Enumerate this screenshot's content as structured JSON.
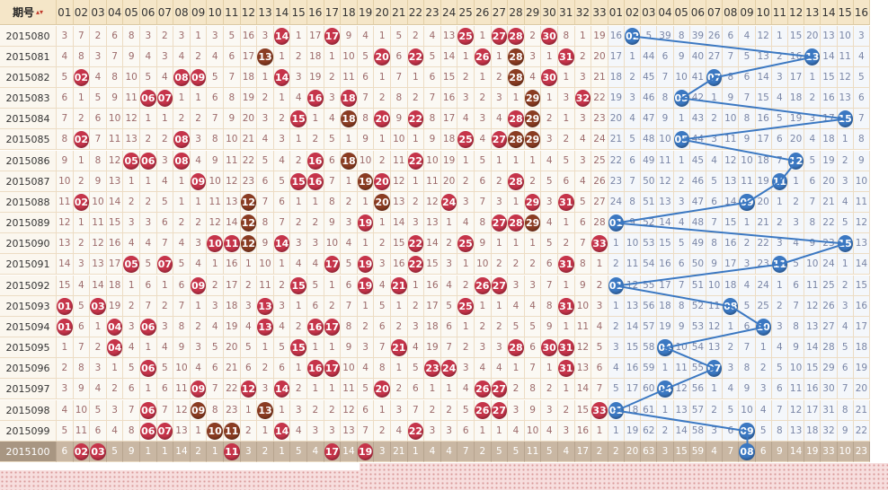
{
  "header": {
    "period_label": "期号",
    "sort_icon": "sort-up-down-icon",
    "red_cols": [
      "01",
      "02",
      "03",
      "04",
      "05",
      "06",
      "07",
      "08",
      "09",
      "10",
      "11",
      "12",
      "13",
      "14",
      "15",
      "16",
      "17",
      "18",
      "19",
      "20",
      "21",
      "22",
      "23",
      "24",
      "25",
      "26",
      "27",
      "28",
      "29",
      "30",
      "31",
      "32",
      "33"
    ],
    "blue_cols": [
      "01",
      "02",
      "03",
      "04",
      "05",
      "06",
      "07",
      "08",
      "09",
      "10",
      "11",
      "12",
      "13",
      "14",
      "15",
      "16"
    ]
  },
  "colors": {
    "red_ball": "#c6344a",
    "repeat_ball": "#8a3c22",
    "blue_ball": "#3b78c2",
    "header_bg": "#f5e6c8"
  },
  "rows": [
    {
      "period": "2015080",
      "red": [
        "3",
        "7",
        "2",
        "6",
        "8",
        "3",
        "2",
        "3",
        "1",
        "3",
        "5",
        "16",
        "3",
        "*14",
        "1",
        "17",
        "*17",
        "9",
        "4",
        "1",
        "5",
        "2",
        "4",
        "13",
        "*25",
        "1",
        "*27",
        "*28",
        "2",
        "*30",
        "8",
        "1",
        "19"
      ],
      "blue": [
        "16",
        "*02",
        "5",
        "39",
        "8",
        "39",
        "26",
        "6",
        "4",
        "12",
        "1",
        "15",
        "20",
        "13",
        "10",
        "3"
      ]
    },
    {
      "period": "2015081",
      "red": [
        "4",
        "8",
        "3",
        "7",
        "9",
        "4",
        "3",
        "4",
        "2",
        "4",
        "6",
        "17",
        "#13",
        "1",
        "2",
        "18",
        "1",
        "10",
        "5",
        "*20",
        "6",
        "*22",
        "5",
        "14",
        "1",
        "*26",
        "1",
        "#28",
        "3",
        "1",
        "*31",
        "2",
        "20"
      ],
      "blue": [
        "17",
        "1",
        "44",
        "6",
        "9",
        "40",
        "27",
        "7",
        "5",
        "13",
        "2",
        "16",
        "*13",
        "14",
        "11",
        "4"
      ]
    },
    {
      "period": "2015082",
      "red": [
        "5",
        "*02",
        "4",
        "8",
        "10",
        "5",
        "4",
        "*08",
        "*09",
        "5",
        "7",
        "18",
        "1",
        "*14",
        "3",
        "19",
        "2",
        "11",
        "6",
        "1",
        "7",
        "1",
        "6",
        "15",
        "2",
        "1",
        "2",
        "#28",
        "4",
        "*30",
        "1",
        "3",
        "21"
      ],
      "blue": [
        "18",
        "2",
        "45",
        "7",
        "10",
        "41",
        "*07",
        "8",
        "6",
        "14",
        "3",
        "17",
        "1",
        "15",
        "12",
        "5"
      ]
    },
    {
      "period": "2015083",
      "red": [
        "6",
        "1",
        "5",
        "9",
        "11",
        "*06",
        "*07",
        "1",
        "1",
        "6",
        "8",
        "19",
        "2",
        "1",
        "4",
        "*16",
        "3",
        "*18",
        "7",
        "2",
        "8",
        "2",
        "7",
        "16",
        "3",
        "2",
        "3",
        "1",
        "#29",
        "1",
        "3",
        "*32",
        "22"
      ],
      "blue": [
        "19",
        "3",
        "46",
        "8",
        "*05",
        "42",
        "1",
        "9",
        "7",
        "15",
        "4",
        "18",
        "2",
        "16",
        "13",
        "6"
      ]
    },
    {
      "period": "2015084",
      "red": [
        "7",
        "2",
        "6",
        "10",
        "12",
        "1",
        "1",
        "2",
        "2",
        "7",
        "9",
        "20",
        "3",
        "2",
        "*15",
        "1",
        "4",
        "#18",
        "8",
        "*20",
        "9",
        "*22",
        "8",
        "17",
        "4",
        "3",
        "4",
        "*28",
        "#29",
        "2",
        "1",
        "3",
        "23"
      ],
      "blue": [
        "20",
        "4",
        "47",
        "9",
        "1",
        "43",
        "2",
        "10",
        "8",
        "16",
        "5",
        "19",
        "3",
        "17",
        "*15",
        "7"
      ]
    },
    {
      "period": "2015085",
      "red": [
        "8",
        "*02",
        "7",
        "11",
        "13",
        "2",
        "2",
        "*08",
        "3",
        "8",
        "10",
        "21",
        "4",
        "3",
        "1",
        "2",
        "5",
        "1",
        "9",
        "1",
        "10",
        "1",
        "9",
        "18",
        "*25",
        "4",
        "*27",
        "#28",
        "#29",
        "3",
        "2",
        "4",
        "24"
      ],
      "blue": [
        "21",
        "5",
        "48",
        "10",
        "*05",
        "44",
        "3",
        "11",
        "9",
        "17",
        "6",
        "20",
        "4",
        "18",
        "1",
        "8"
      ]
    },
    {
      "period": "2015086",
      "red": [
        "9",
        "1",
        "8",
        "12",
        "*05",
        "*06",
        "3",
        "*08",
        "4",
        "9",
        "11",
        "22",
        "5",
        "4",
        "2",
        "*16",
        "6",
        "#18",
        "10",
        "2",
        "11",
        "*22",
        "10",
        "19",
        "1",
        "5",
        "1",
        "1",
        "1",
        "4",
        "5",
        "3",
        "25"
      ],
      "blue": [
        "22",
        "6",
        "49",
        "11",
        "1",
        "45",
        "4",
        "12",
        "10",
        "18",
        "7",
        "*12",
        "5",
        "19",
        "2",
        "9"
      ]
    },
    {
      "period": "2015087",
      "red": [
        "10",
        "2",
        "9",
        "13",
        "1",
        "1",
        "4",
        "1",
        "*09",
        "10",
        "12",
        "23",
        "6",
        "5",
        "*15",
        "*16",
        "7",
        "1",
        "#19",
        "*20",
        "12",
        "1",
        "11",
        "20",
        "2",
        "6",
        "2",
        "*28",
        "2",
        "5",
        "6",
        "4",
        "26"
      ],
      "blue": [
        "23",
        "7",
        "50",
        "12",
        "2",
        "46",
        "5",
        "13",
        "11",
        "19",
        "*11",
        "1",
        "6",
        "20",
        "3",
        "10"
      ]
    },
    {
      "period": "2015088",
      "red": [
        "11",
        "*02",
        "10",
        "14",
        "2",
        "2",
        "5",
        "1",
        "1",
        "11",
        "13",
        "#12",
        "7",
        "6",
        "1",
        "1",
        "8",
        "2",
        "1",
        "#20",
        "13",
        "2",
        "12",
        "*24",
        "3",
        "7",
        "3",
        "1",
        "*29",
        "3",
        "*31",
        "5",
        "27"
      ],
      "blue": [
        "24",
        "8",
        "51",
        "13",
        "3",
        "47",
        "6",
        "14",
        "*09",
        "20",
        "1",
        "2",
        "7",
        "21",
        "4",
        "11"
      ]
    },
    {
      "period": "2015089",
      "red": [
        "12",
        "1",
        "11",
        "15",
        "3",
        "3",
        "6",
        "2",
        "2",
        "12",
        "14",
        "#12",
        "8",
        "7",
        "2",
        "2",
        "9",
        "3",
        "*19",
        "1",
        "14",
        "3",
        "13",
        "1",
        "4",
        "8",
        "*27",
        "*28",
        "#29",
        "4",
        "1",
        "6",
        "28"
      ],
      "blue": [
        "*01",
        "9",
        "52",
        "14",
        "4",
        "48",
        "7",
        "15",
        "1",
        "21",
        "2",
        "3",
        "8",
        "22",
        "5",
        "12"
      ]
    },
    {
      "period": "2015090",
      "red": [
        "13",
        "2",
        "12",
        "16",
        "4",
        "4",
        "7",
        "4",
        "3",
        "*10",
        "*11",
        "#12",
        "9",
        "*14",
        "3",
        "3",
        "10",
        "4",
        "1",
        "2",
        "15",
        "*22",
        "14",
        "2",
        "*25",
        "9",
        "1",
        "1",
        "1",
        "5",
        "2",
        "7",
        "*33"
      ],
      "blue": [
        "1",
        "10",
        "53",
        "15",
        "5",
        "49",
        "8",
        "16",
        "2",
        "22",
        "3",
        "4",
        "9",
        "23",
        "*15",
        "13"
      ]
    },
    {
      "period": "2015091",
      "red": [
        "14",
        "3",
        "13",
        "17",
        "*05",
        "5",
        "*07",
        "5",
        "4",
        "1",
        "16",
        "1",
        "10",
        "1",
        "4",
        "4",
        "*17",
        "5",
        "*19",
        "3",
        "16",
        "*22",
        "15",
        "3",
        "1",
        "10",
        "2",
        "2",
        "2",
        "6",
        "*31",
        "8",
        "1"
      ],
      "blue": [
        "2",
        "11",
        "54",
        "16",
        "6",
        "50",
        "9",
        "17",
        "3",
        "23",
        "*11",
        "5",
        "10",
        "24",
        "1",
        "14"
      ]
    },
    {
      "period": "2015092",
      "red": [
        "15",
        "4",
        "14",
        "18",
        "1",
        "6",
        "1",
        "6",
        "*09",
        "2",
        "17",
        "2",
        "11",
        "2",
        "*15",
        "5",
        "1",
        "6",
        "*19",
        "4",
        "*21",
        "1",
        "16",
        "4",
        "2",
        "*26",
        "*27",
        "3",
        "3",
        "7",
        "1",
        "9",
        "2"
      ],
      "blue": [
        "*01",
        "12",
        "55",
        "17",
        "7",
        "51",
        "10",
        "18",
        "4",
        "24",
        "1",
        "6",
        "11",
        "25",
        "2",
        "15"
      ]
    },
    {
      "period": "2015093",
      "red": [
        "*01",
        "5",
        "*03",
        "19",
        "2",
        "7",
        "2",
        "7",
        "1",
        "3",
        "18",
        "3",
        "*13",
        "3",
        "1",
        "6",
        "2",
        "7",
        "1",
        "5",
        "1",
        "2",
        "17",
        "5",
        "*25",
        "1",
        "1",
        "4",
        "4",
        "8",
        "*31",
        "10",
        "3"
      ],
      "blue": [
        "1",
        "13",
        "56",
        "18",
        "8",
        "52",
        "11",
        "*08",
        "5",
        "25",
        "2",
        "7",
        "12",
        "26",
        "3",
        "16"
      ]
    },
    {
      "period": "2015094",
      "red": [
        "*01",
        "6",
        "1",
        "*04",
        "3",
        "*06",
        "3",
        "8",
        "2",
        "4",
        "19",
        "4",
        "*13",
        "4",
        "2",
        "*16",
        "*17",
        "8",
        "2",
        "6",
        "2",
        "3",
        "18",
        "6",
        "1",
        "2",
        "2",
        "5",
        "5",
        "9",
        "1",
        "11",
        "4"
      ],
      "blue": [
        "2",
        "14",
        "57",
        "19",
        "9",
        "53",
        "12",
        "1",
        "6",
        "*10",
        "3",
        "8",
        "13",
        "27",
        "4",
        "17"
      ]
    },
    {
      "period": "2015095",
      "red": [
        "1",
        "7",
        "2",
        "*04",
        "4",
        "1",
        "4",
        "9",
        "3",
        "5",
        "20",
        "5",
        "1",
        "5",
        "*15",
        "1",
        "1",
        "9",
        "3",
        "7",
        "*21",
        "4",
        "19",
        "7",
        "2",
        "3",
        "3",
        "*28",
        "6",
        "*30",
        "*31",
        "12",
        "5"
      ],
      "blue": [
        "3",
        "15",
        "58",
        "*04",
        "10",
        "54",
        "13",
        "2",
        "7",
        "1",
        "4",
        "9",
        "14",
        "28",
        "5",
        "18"
      ]
    },
    {
      "period": "2015096",
      "red": [
        "2",
        "8",
        "3",
        "1",
        "5",
        "*06",
        "5",
        "10",
        "4",
        "6",
        "21",
        "6",
        "2",
        "6",
        "1",
        "*16",
        "*17",
        "10",
        "4",
        "8",
        "1",
        "5",
        "*23",
        "*24",
        "3",
        "4",
        "4",
        "1",
        "7",
        "1",
        "*31",
        "13",
        "6"
      ],
      "blue": [
        "4",
        "16",
        "59",
        "1",
        "11",
        "55",
        "*07",
        "3",
        "8",
        "2",
        "5",
        "10",
        "15",
        "29",
        "6",
        "19"
      ]
    },
    {
      "period": "2015097",
      "red": [
        "3",
        "9",
        "4",
        "2",
        "6",
        "1",
        "6",
        "11",
        "*09",
        "7",
        "22",
        "*12",
        "3",
        "*14",
        "2",
        "1",
        "1",
        "11",
        "5",
        "*20",
        "2",
        "6",
        "1",
        "1",
        "4",
        "*26",
        "*27",
        "2",
        "8",
        "2",
        "1",
        "14",
        "7"
      ],
      "blue": [
        "5",
        "17",
        "60",
        "*04",
        "12",
        "56",
        "1",
        "4",
        "9",
        "3",
        "6",
        "11",
        "16",
        "30",
        "7",
        "20"
      ]
    },
    {
      "period": "2015098",
      "red": [
        "4",
        "10",
        "5",
        "3",
        "7",
        "*06",
        "7",
        "12",
        "#09",
        "8",
        "23",
        "1",
        "#13",
        "1",
        "3",
        "2",
        "2",
        "12",
        "6",
        "1",
        "3",
        "7",
        "2",
        "2",
        "5",
        "*26",
        "*27",
        "3",
        "9",
        "3",
        "2",
        "15",
        "*33"
      ],
      "blue": [
        "*01",
        "18",
        "61",
        "1",
        "13",
        "57",
        "2",
        "5",
        "10",
        "4",
        "7",
        "12",
        "17",
        "31",
        "8",
        "21"
      ]
    },
    {
      "period": "2015099",
      "red": [
        "5",
        "11",
        "6",
        "4",
        "8",
        "*06",
        "*07",
        "13",
        "1",
        "#10",
        "#11",
        "2",
        "1",
        "*14",
        "4",
        "3",
        "3",
        "13",
        "7",
        "2",
        "4",
        "*22",
        "3",
        "3",
        "6",
        "1",
        "1",
        "4",
        "10",
        "4",
        "3",
        "16",
        "1"
      ],
      "blue": [
        "1",
        "19",
        "62",
        "2",
        "14",
        "58",
        "3",
        "6",
        "*09",
        "5",
        "8",
        "13",
        "18",
        "32",
        "9",
        "22"
      ]
    }
  ],
  "pending": {
    "period": "2015100",
    "red": [
      "6",
      "*02",
      "*03",
      "5",
      "9",
      "1",
      "1",
      "14",
      "2",
      "1",
      "*11",
      "3",
      "2",
      "1",
      "5",
      "4",
      "*17",
      "14",
      "*19",
      "3",
      "21",
      "1",
      "4",
      "4",
      "7",
      "2",
      "5",
      "5",
      "11",
      "5",
      "4",
      "17",
      "2"
    ],
    "blue": [
      "2",
      "20",
      "63",
      "3",
      "15",
      "59",
      "4",
      "7",
      "*08",
      "6",
      "9",
      "14",
      "19",
      "33",
      "10",
      "23"
    ]
  }
}
